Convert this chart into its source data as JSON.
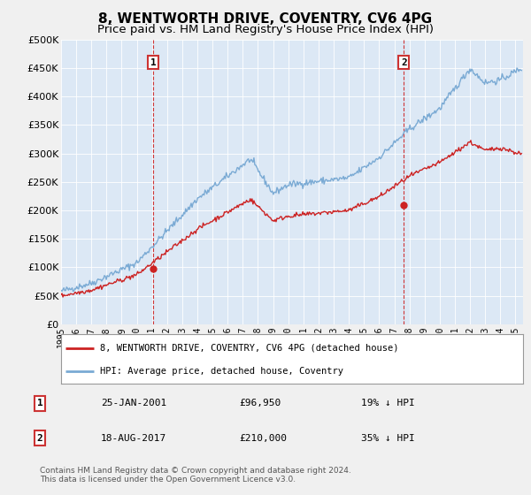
{
  "title": "8, WENTWORTH DRIVE, COVENTRY, CV6 4PG",
  "subtitle": "Price paid vs. HM Land Registry's House Price Index (HPI)",
  "ylabel_ticks": [
    "£0",
    "£50K",
    "£100K",
    "£150K",
    "£200K",
    "£250K",
    "£300K",
    "£350K",
    "£400K",
    "£450K",
    "£500K"
  ],
  "ytick_values": [
    0,
    50000,
    100000,
    150000,
    200000,
    250000,
    300000,
    350000,
    400000,
    450000,
    500000
  ],
  "ylim": [
    0,
    500000
  ],
  "xlim_start": 1995.0,
  "xlim_end": 2025.5,
  "fig_bg_color": "#f0f0f0",
  "plot_bg_color": "#dce8f5",
  "hpi_color": "#7aaad4",
  "price_color": "#cc2222",
  "marker1_date_x": 2001.07,
  "marker1_price": 96950,
  "marker2_date_x": 2017.63,
  "marker2_price": 210000,
  "legend_label_price": "8, WENTWORTH DRIVE, COVENTRY, CV6 4PG (detached house)",
  "legend_label_hpi": "HPI: Average price, detached house, Coventry",
  "annotation1_label": "1",
  "annotation1_date": "25-JAN-2001",
  "annotation1_price": "£96,950",
  "annotation1_hpi": "19% ↓ HPI",
  "annotation2_label": "2",
  "annotation2_date": "18-AUG-2017",
  "annotation2_price": "£210,000",
  "annotation2_hpi": "35% ↓ HPI",
  "footer": "Contains HM Land Registry data © Crown copyright and database right 2024.\nThis data is licensed under the Open Government Licence v3.0.",
  "title_fontsize": 11,
  "subtitle_fontsize": 9.5
}
